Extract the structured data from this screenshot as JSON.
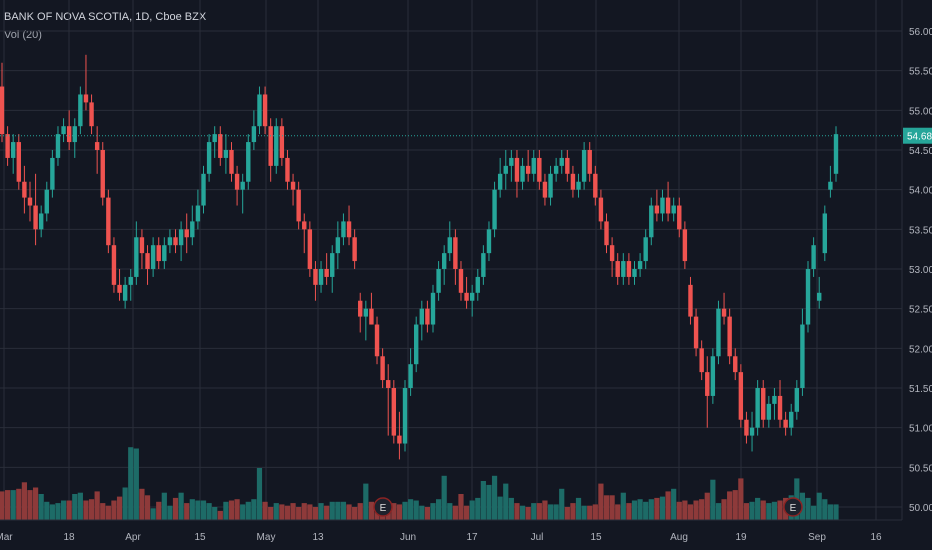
{
  "header": {
    "symbol": "BANK OF NOVA SCOTIA",
    "interval": "1D",
    "exchange": "Cboe BZX",
    "volume_label": "Vol (20)"
  },
  "colors": {
    "background": "#131722",
    "grid": "#2a2e39",
    "up": "#26a69a",
    "down": "#ef5350",
    "up_volume": "#1d6b67",
    "down_volume": "#8e3a3a",
    "last_price_line": "#26a69a",
    "earnings_marker": "#8b2323"
  },
  "chart_data": {
    "type": "candlestick",
    "title": "BANK OF NOVA SCOTIA, 1D, Cboe BZX",
    "y_ticks": [
      "56.00",
      "55.50",
      "55.00",
      "54.50",
      "54.00",
      "53.50",
      "53.00",
      "52.50",
      "52.00",
      "51.50",
      "51.00",
      "50.50",
      "50.00"
    ],
    "ylim": [
      49.9,
      56.2
    ],
    "x_ticks": [
      "Mar",
      "18",
      "Apr",
      "15",
      "May",
      "13",
      "Jun",
      "17",
      "Jul",
      "15",
      "Aug",
      "19",
      "Sep",
      "16"
    ],
    "last_price": "54.68",
    "earnings_markers": [
      "E",
      "E"
    ],
    "grid": true,
    "candles": [
      [
        55.3,
        55.6,
        54.6,
        54.7
      ],
      [
        54.7,
        54.8,
        54.3,
        54.4
      ],
      [
        54.4,
        54.7,
        54.2,
        54.6
      ],
      [
        54.6,
        54.7,
        54.0,
        54.1
      ],
      [
        54.1,
        54.3,
        53.7,
        53.9
      ],
      [
        53.9,
        54.1,
        53.6,
        53.8
      ],
      [
        53.8,
        54.2,
        53.3,
        53.5
      ],
      [
        53.5,
        53.8,
        53.4,
        53.7
      ],
      [
        53.7,
        54.1,
        53.6,
        54.0
      ],
      [
        54.0,
        54.5,
        53.9,
        54.4
      ],
      [
        54.4,
        54.8,
        54.3,
        54.7
      ],
      [
        54.7,
        54.9,
        54.6,
        54.8
      ],
      [
        54.8,
        55.0,
        54.5,
        54.6
      ],
      [
        54.6,
        54.9,
        54.4,
        54.8
      ],
      [
        54.8,
        55.3,
        54.7,
        55.2
      ],
      [
        55.2,
        55.7,
        55.0,
        55.1
      ],
      [
        55.1,
        55.2,
        54.7,
        54.8
      ],
      [
        54.6,
        54.8,
        54.2,
        54.5
      ],
      [
        54.5,
        54.6,
        53.8,
        53.9
      ],
      [
        53.9,
        54.0,
        53.2,
        53.3
      ],
      [
        53.3,
        53.4,
        52.7,
        52.8
      ],
      [
        52.8,
        53.0,
        52.6,
        52.7
      ],
      [
        52.6,
        52.9,
        52.5,
        52.8
      ],
      [
        52.8,
        53.0,
        52.6,
        52.9
      ],
      [
        52.9,
        53.6,
        52.8,
        53.4
      ],
      [
        53.4,
        53.5,
        53.0,
        53.2
      ],
      [
        53.2,
        53.3,
        52.8,
        53.0
      ],
      [
        53.0,
        53.4,
        52.9,
        53.3
      ],
      [
        53.3,
        53.4,
        53.0,
        53.1
      ],
      [
        53.1,
        53.4,
        53.0,
        53.3
      ],
      [
        53.3,
        53.5,
        53.2,
        53.4
      ],
      [
        53.4,
        53.5,
        53.2,
        53.3
      ],
      [
        53.3,
        53.6,
        53.1,
        53.5
      ],
      [
        53.5,
        53.7,
        53.2,
        53.4
      ],
      [
        53.4,
        53.8,
        53.3,
        53.6
      ],
      [
        53.6,
        54.0,
        53.5,
        53.8
      ],
      [
        53.8,
        54.3,
        53.7,
        54.2
      ],
      [
        54.2,
        54.7,
        54.1,
        54.6
      ],
      [
        54.6,
        54.8,
        54.4,
        54.7
      ],
      [
        54.7,
        54.8,
        54.3,
        54.4
      ],
      [
        54.4,
        54.7,
        54.2,
        54.5
      ],
      [
        54.5,
        54.6,
        54.1,
        54.2
      ],
      [
        54.2,
        54.3,
        53.8,
        54.0
      ],
      [
        54.0,
        54.2,
        53.7,
        54.1
      ],
      [
        54.1,
        54.7,
        54.0,
        54.6
      ],
      [
        54.6,
        55.0,
        54.5,
        54.8
      ],
      [
        54.8,
        55.3,
        54.7,
        55.2
      ],
      [
        55.2,
        55.3,
        54.7,
        54.8
      ],
      [
        54.8,
        54.9,
        54.1,
        54.3
      ],
      [
        54.3,
        54.9,
        54.2,
        54.8
      ],
      [
        54.8,
        54.9,
        54.3,
        54.4
      ],
      [
        54.4,
        54.5,
        54.0,
        54.1
      ],
      [
        54.1,
        54.2,
        53.8,
        54.0
      ],
      [
        54.0,
        54.1,
        53.5,
        53.6
      ],
      [
        53.6,
        53.7,
        53.2,
        53.5
      ],
      [
        53.5,
        53.6,
        52.9,
        53.0
      ],
      [
        53.0,
        53.1,
        52.6,
        52.8
      ],
      [
        52.8,
        53.1,
        52.7,
        53.0
      ],
      [
        53.0,
        53.2,
        52.8,
        52.9
      ],
      [
        52.9,
        53.3,
        52.7,
        53.2
      ],
      [
        53.2,
        53.6,
        53.0,
        53.4
      ],
      [
        53.4,
        53.7,
        53.3,
        53.6
      ],
      [
        53.6,
        53.8,
        53.3,
        53.4
      ],
      [
        53.4,
        53.5,
        53.0,
        53.1
      ],
      [
        52.6,
        52.7,
        52.2,
        52.4
      ],
      [
        52.4,
        52.6,
        52.1,
        52.5
      ],
      [
        52.5,
        52.7,
        52.3,
        52.3
      ],
      [
        52.3,
        52.4,
        51.8,
        51.9
      ],
      [
        51.9,
        52.0,
        51.5,
        51.6
      ],
      [
        51.6,
        51.8,
        50.9,
        51.5
      ],
      [
        51.5,
        51.6,
        50.8,
        50.9
      ],
      [
        50.9,
        51.2,
        50.6,
        50.8
      ],
      [
        50.8,
        51.6,
        50.7,
        51.5
      ],
      [
        51.5,
        52.0,
        51.4,
        51.8
      ],
      [
        51.8,
        52.4,
        51.7,
        52.3
      ],
      [
        52.3,
        52.6,
        52.1,
        52.5
      ],
      [
        52.5,
        52.6,
        52.2,
        52.3
      ],
      [
        52.3,
        52.8,
        52.2,
        52.7
      ],
      [
        52.7,
        53.1,
        52.6,
        53.0
      ],
      [
        53.0,
        53.3,
        52.8,
        53.2
      ],
      [
        53.2,
        53.6,
        53.1,
        53.4
      ],
      [
        53.4,
        53.5,
        52.8,
        53.0
      ],
      [
        53.0,
        53.1,
        52.6,
        52.7
      ],
      [
        52.7,
        52.9,
        52.5,
        52.6
      ],
      [
        52.6,
        52.8,
        52.4,
        52.7
      ],
      [
        52.7,
        53.0,
        52.6,
        52.9
      ],
      [
        52.9,
        53.3,
        52.8,
        53.2
      ],
      [
        53.2,
        53.6,
        53.1,
        53.5
      ],
      [
        53.5,
        54.1,
        53.4,
        54.0
      ],
      [
        54.0,
        54.4,
        53.9,
        54.2
      ],
      [
        54.2,
        54.5,
        54.0,
        54.3
      ],
      [
        54.3,
        54.5,
        54.1,
        54.4
      ],
      [
        54.4,
        54.5,
        53.9,
        54.1
      ],
      [
        54.1,
        54.4,
        54.0,
        54.3
      ],
      [
        54.3,
        54.5,
        54.1,
        54.2
      ],
      [
        54.2,
        54.5,
        54.1,
        54.4
      ],
      [
        54.4,
        54.5,
        54.0,
        54.1
      ],
      [
        54.1,
        54.2,
        53.8,
        53.9
      ],
      [
        53.9,
        54.3,
        53.8,
        54.2
      ],
      [
        54.2,
        54.4,
        54.1,
        54.3
      ],
      [
        54.3,
        54.5,
        54.2,
        54.4
      ],
      [
        54.4,
        54.5,
        54.1,
        54.2
      ],
      [
        54.2,
        54.3,
        53.9,
        54.0
      ],
      [
        54.0,
        54.2,
        53.9,
        54.1
      ],
      [
        54.1,
        54.6,
        54.0,
        54.5
      ],
      [
        54.5,
        54.6,
        54.1,
        54.2
      ],
      [
        54.2,
        54.3,
        53.8,
        53.9
      ],
      [
        53.9,
        54.0,
        53.5,
        53.6
      ],
      [
        53.6,
        53.7,
        53.2,
        53.3
      ],
      [
        53.3,
        53.4,
        52.9,
        53.1
      ],
      [
        53.1,
        53.2,
        52.8,
        52.9
      ],
      [
        52.9,
        53.2,
        52.8,
        53.1
      ],
      [
        53.1,
        53.2,
        52.8,
        52.9
      ],
      [
        52.9,
        53.1,
        52.8,
        53.0
      ],
      [
        53.0,
        53.2,
        52.9,
        53.1
      ],
      [
        53.1,
        53.5,
        53.0,
        53.4
      ],
      [
        53.4,
        53.9,
        53.3,
        53.8
      ],
      [
        53.8,
        54.0,
        53.6,
        53.7
      ],
      [
        53.7,
        54.0,
        53.6,
        53.9
      ],
      [
        53.9,
        54.1,
        53.6,
        53.7
      ],
      [
        53.7,
        53.9,
        53.6,
        53.8
      ],
      [
        53.8,
        53.9,
        53.4,
        53.5
      ],
      [
        53.5,
        53.6,
        53.0,
        53.1
      ],
      [
        52.8,
        52.9,
        52.3,
        52.4
      ],
      [
        52.4,
        52.5,
        51.9,
        52.0
      ],
      [
        52.0,
        52.1,
        51.6,
        51.7
      ],
      [
        51.7,
        51.9,
        51.0,
        51.4
      ],
      [
        51.4,
        52.0,
        51.3,
        51.9
      ],
      [
        51.9,
        52.6,
        51.8,
        52.5
      ],
      [
        52.5,
        52.7,
        52.3,
        52.4
      ],
      [
        52.4,
        52.5,
        51.8,
        51.9
      ],
      [
        51.9,
        52.0,
        51.6,
        51.7
      ],
      [
        51.7,
        51.8,
        51.0,
        51.1
      ],
      [
        51.1,
        51.2,
        50.8,
        50.9
      ],
      [
        50.9,
        51.2,
        50.7,
        51.0
      ],
      [
        51.0,
        51.6,
        50.9,
        51.5
      ],
      [
        51.5,
        51.6,
        51.0,
        51.1
      ],
      [
        51.1,
        51.4,
        51.0,
        51.3
      ],
      [
        51.3,
        51.5,
        51.1,
        51.4
      ],
      [
        51.4,
        51.6,
        51.0,
        51.1
      ],
      [
        51.1,
        51.2,
        50.9,
        51.0
      ],
      [
        51.0,
        51.3,
        50.9,
        51.2
      ],
      [
        51.2,
        51.6,
        51.1,
        51.5
      ],
      [
        51.5,
        52.5,
        51.4,
        52.3
      ],
      [
        52.3,
        53.1,
        52.2,
        53.0
      ],
      [
        53.0,
        53.4,
        52.9,
        53.3
      ],
      [
        52.6,
        52.9,
        52.5,
        52.7
      ],
      [
        53.2,
        53.8,
        53.1,
        53.7
      ],
      [
        54.0,
        54.3,
        53.9,
        54.1
      ],
      [
        54.2,
        54.8,
        54.1,
        54.7
      ]
    ],
    "volumes": [
      0.22,
      0.23,
      0.23,
      0.24,
      0.29,
      0.23,
      0.25,
      0.2,
      0.14,
      0.12,
      0.13,
      0.15,
      0.15,
      0.2,
      0.21,
      0.15,
      0.16,
      0.22,
      0.13,
      0.11,
      0.15,
      0.18,
      0.25,
      0.56,
      0.55,
      0.24,
      0.19,
      0.09,
      0.14,
      0.21,
      0.11,
      0.17,
      0.21,
      0.13,
      0.16,
      0.15,
      0.15,
      0.13,
      0.1,
      0.07,
      0.14,
      0.15,
      0.16,
      0.12,
      0.14,
      0.16,
      0.4,
      0.14,
      0.1,
      0.13,
      0.12,
      0.11,
      0.13,
      0.1,
      0.13,
      0.12,
      0.1,
      0.13,
      0.11,
      0.14,
      0.14,
      0.14,
      0.12,
      0.1,
      0.13,
      0.28,
      0.14,
      0.11,
      0.1,
      0.1,
      0.13,
      0.12,
      0.14,
      0.16,
      0.15,
      0.11,
      0.1,
      0.13,
      0.16,
      0.34,
      0.13,
      0.11,
      0.2,
      0.11,
      0.15,
      0.17,
      0.3,
      0.27,
      0.34,
      0.18,
      0.28,
      0.17,
      0.13,
      0.11,
      0.1,
      0.13,
      0.13,
      0.15,
      0.12,
      0.12,
      0.24,
      0.1,
      0.13,
      0.17,
      0.11,
      0.11,
      0.12,
      0.28,
      0.19,
      0.19,
      0.12,
      0.21,
      0.13,
      0.15,
      0.16,
      0.14,
      0.16,
      0.17,
      0.18,
      0.22,
      0.24,
      0.14,
      0.15,
      0.12,
      0.15,
      0.16,
      0.21,
      0.31,
      0.13,
      0.16,
      0.22,
      0.23,
      0.32,
      0.13,
      0.14,
      0.17,
      0.15,
      0.13,
      0.14,
      0.15,
      0.17,
      0.19,
      0.32,
      0.21,
      0.17,
      0.11,
      0.21,
      0.16,
      0.12,
      0.12
    ]
  }
}
